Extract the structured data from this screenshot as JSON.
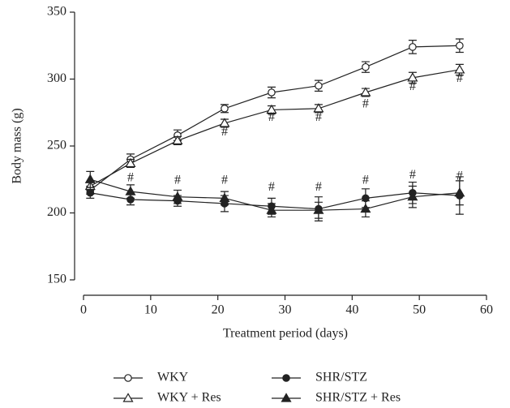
{
  "chart_data": {
    "type": "line",
    "x_label": "Treatment period (days)",
    "y_label": "Body mass (g)",
    "x": [
      1,
      7,
      14,
      21,
      28,
      35,
      42,
      49,
      56
    ],
    "xlim": [
      0,
      60
    ],
    "xticks": [
      0,
      10,
      20,
      30,
      40,
      50,
      60
    ],
    "ylim": [
      140,
      350
    ],
    "yticks": [
      150,
      200,
      250,
      300,
      350
    ],
    "series": [
      {
        "name": "WKY",
        "color": "#222222",
        "marker": "open-circle",
        "values": [
          217,
          240,
          258,
          278,
          290,
          295,
          309,
          324,
          325
        ],
        "errors": [
          3,
          4,
          4,
          3,
          4,
          4,
          4,
          5,
          5
        ]
      },
      {
        "name": "WKY + Res",
        "color": "#222222",
        "marker": "open-triangle",
        "values": [
          220,
          237,
          254,
          267,
          277,
          278,
          290,
          301,
          307
        ],
        "errors": [
          3,
          3,
          3,
          3,
          3,
          3,
          3,
          4,
          4
        ]
      },
      {
        "name": "SHR/STZ",
        "color": "#222222",
        "marker": "filled-circle",
        "values": [
          215,
          210,
          209,
          207,
          205,
          203,
          211,
          215,
          213
        ],
        "errors": [
          4,
          4,
          4,
          6,
          6,
          9,
          7,
          8,
          14
        ]
      },
      {
        "name": "SHR/STZ + Res",
        "color": "#222222",
        "marker": "filled-triangle",
        "values": [
          225,
          216,
          212,
          211,
          202,
          202,
          203,
          212,
          215
        ],
        "errors": [
          6,
          5,
          5,
          5,
          5,
          6,
          6,
          8,
          9
        ]
      }
    ],
    "annotations": [
      {
        "text": "#",
        "x": 7,
        "y": 226
      },
      {
        "text": "#",
        "x": 14,
        "y": 224
      },
      {
        "text": "#",
        "x": 21,
        "y": 224
      },
      {
        "text": "#",
        "x": 28,
        "y": 219
      },
      {
        "text": "#",
        "x": 35,
        "y": 219
      },
      {
        "text": "#",
        "x": 42,
        "y": 224
      },
      {
        "text": "#",
        "x": 49,
        "y": 228
      },
      {
        "text": "#",
        "x": 56,
        "y": 227
      },
      {
        "text": "#",
        "x": 21,
        "y": 260
      },
      {
        "text": "#",
        "x": 28,
        "y": 271
      },
      {
        "text": "#",
        "x": 35,
        "y": 271
      },
      {
        "text": "#",
        "x": 42,
        "y": 281
      },
      {
        "text": "#",
        "x": 49,
        "y": 294
      },
      {
        "text": "#",
        "x": 56,
        "y": 300
      }
    ]
  }
}
